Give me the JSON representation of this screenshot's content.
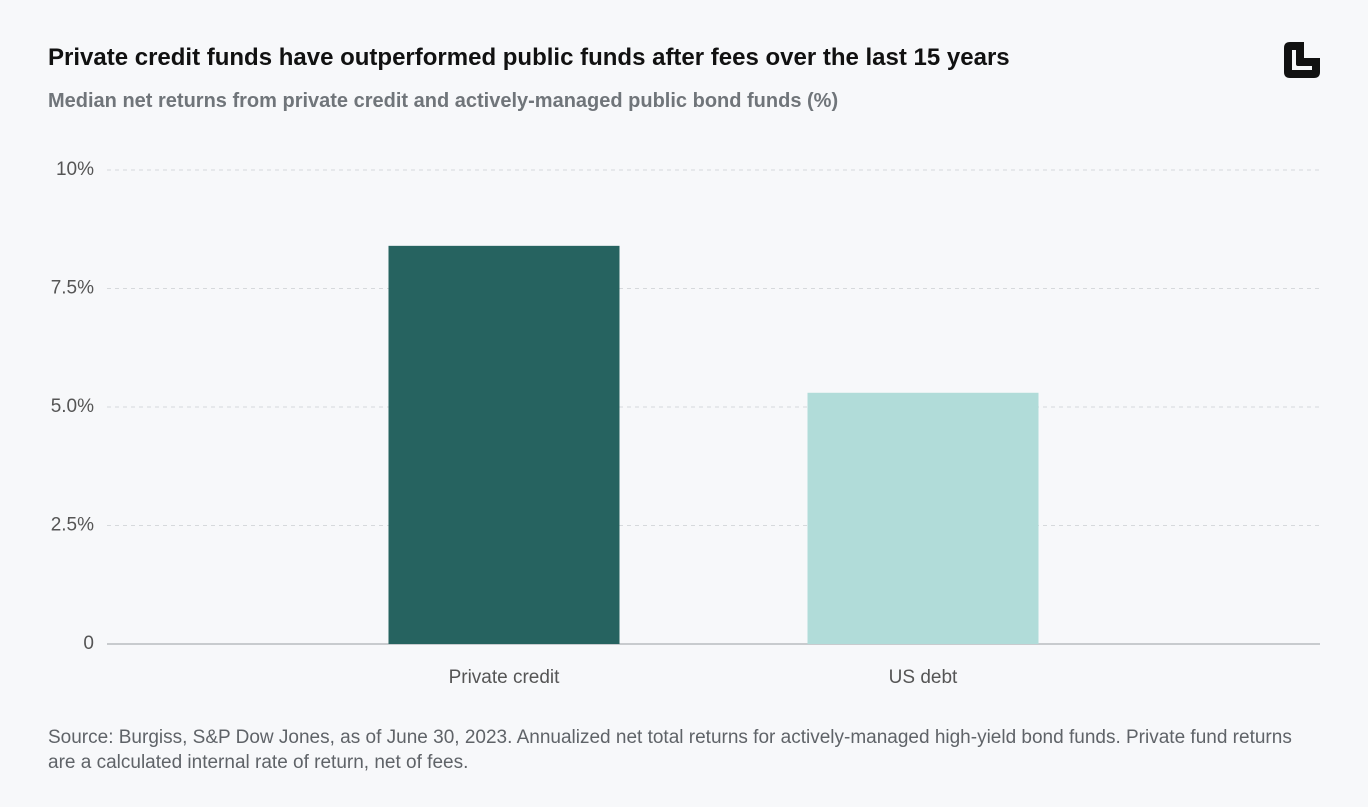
{
  "chart_data": {
    "type": "bar",
    "title": "Private credit funds have outperformed public funds after fees over the last 15 years",
    "subtitle": "Median net returns from private credit and actively-managed public bond funds (%)",
    "categories": [
      "Private credit",
      "US debt"
    ],
    "values": [
      8.4,
      5.3
    ],
    "colors": [
      "#266360",
      "#b1dcd9"
    ],
    "ylim": [
      0,
      10
    ],
    "yticks": [
      0,
      {
        "value": 2.5,
        "label": "2.5%"
      },
      {
        "value": 5,
        "label": "5.0%"
      },
      {
        "value": 7.5,
        "label": "7.5%"
      },
      {
        "value": 10,
        "label": "10%"
      }
    ],
    "grid": true,
    "source": "Source: Burgiss, S&P Dow Jones, as of June 30, 2023. Annualized net total returns for actively-managed high-yield bond funds. Private fund returns are a calculated internal rate of return, net of fees."
  }
}
